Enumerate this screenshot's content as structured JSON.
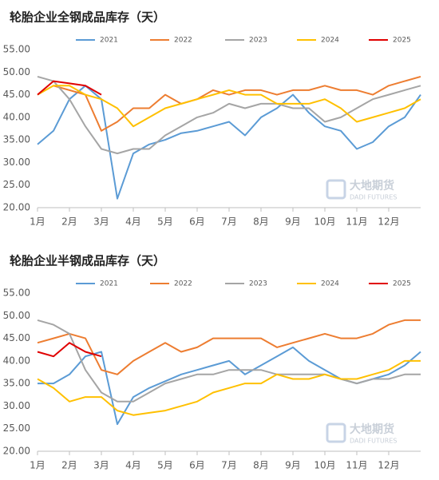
{
  "chart_data": [
    {
      "type": "line",
      "title": "轮胎企业全钢成品库存（天）",
      "x": [
        1,
        1.5,
        2,
        2.5,
        3,
        3.5,
        4,
        4.5,
        5,
        5.5,
        6,
        6.5,
        7,
        7.5,
        8,
        8.5,
        9,
        9.5,
        10,
        10.5,
        11,
        11.5,
        12,
        12.5,
        13
      ],
      "xlim": [
        1,
        13
      ],
      "xticks": [
        {
          "value": 1,
          "label": "1月"
        },
        {
          "value": 2,
          "label": "2月"
        },
        {
          "value": 3,
          "label": "3月"
        },
        {
          "value": 4,
          "label": "4月"
        },
        {
          "value": 5,
          "label": "5月"
        },
        {
          "value": 6,
          "label": "6月"
        },
        {
          "value": 7,
          "label": "7月"
        },
        {
          "value": 8,
          "label": "8月"
        },
        {
          "value": 9,
          "label": "9月"
        },
        {
          "value": 10,
          "label": "10月"
        },
        {
          "value": 11,
          "label": "11月"
        },
        {
          "value": 12,
          "label": "12月"
        }
      ],
      "ylim": [
        20,
        55
      ],
      "yticks": [
        {
          "value": 20,
          "label": "20.00"
        },
        {
          "value": 25,
          "label": "25.00"
        },
        {
          "value": 30,
          "label": "30.00"
        },
        {
          "value": 35,
          "label": "35.00"
        },
        {
          "value": 40,
          "label": "40.00"
        },
        {
          "value": 45,
          "label": "45.00"
        },
        {
          "value": 50,
          "label": "50.00"
        },
        {
          "value": 55,
          "label": "55.00"
        }
      ],
      "grid": false,
      "watermark": [
        "大地期货",
        "DADI FUTURES"
      ],
      "series": [
        {
          "name": "2021",
          "color": "#5b9bd5",
          "values": [
            34,
            37,
            44,
            47,
            44,
            22,
            32,
            34,
            35,
            36.5,
            37,
            38,
            39,
            36,
            40,
            42,
            45,
            41,
            38,
            37,
            33,
            34.5,
            38,
            40,
            45
          ]
        },
        {
          "name": "2022",
          "color": "#ed7d31",
          "values": [
            null,
            47,
            46,
            45,
            37,
            39,
            42,
            42,
            45,
            43,
            44,
            46,
            45,
            46,
            46,
            45,
            46,
            46,
            47,
            46,
            46,
            45,
            47,
            48,
            49
          ]
        },
        {
          "name": "2023",
          "color": "#a5a5a5",
          "values": [
            49,
            48,
            44,
            38,
            33,
            32,
            33,
            33,
            36,
            38,
            40,
            41,
            43,
            42,
            43,
            43,
            42,
            42,
            39,
            40,
            42,
            44,
            45,
            46,
            47
          ]
        },
        {
          "name": "2024",
          "color": "#ffc000",
          "values": [
            45,
            47,
            47,
            45,
            44,
            42,
            38,
            40,
            42,
            43,
            44,
            45,
            46,
            45,
            45,
            43,
            43,
            43,
            44,
            42,
            39,
            40,
            41,
            42,
            44
          ]
        },
        {
          "name": "2025",
          "color": "#e00000",
          "values": [
            45,
            48,
            47.5,
            47,
            45,
            null,
            null,
            null,
            null,
            null,
            null,
            null,
            null,
            null,
            null,
            null,
            null,
            null,
            null,
            null,
            null,
            null,
            null,
            null,
            null
          ]
        }
      ]
    },
    {
      "type": "line",
      "title": "轮胎企业半钢成品库存（天）",
      "x": [
        1,
        1.5,
        2,
        2.5,
        3,
        3.5,
        4,
        4.5,
        5,
        5.5,
        6,
        6.5,
        7,
        7.5,
        8,
        8.5,
        9,
        9.5,
        10,
        10.5,
        11,
        11.5,
        12,
        12.5,
        13
      ],
      "xlim": [
        1,
        13
      ],
      "xticks": [
        {
          "value": 1,
          "label": "1月"
        },
        {
          "value": 2,
          "label": "2月"
        },
        {
          "value": 3,
          "label": "3月"
        },
        {
          "value": 4,
          "label": "4月"
        },
        {
          "value": 5,
          "label": "5月"
        },
        {
          "value": 6,
          "label": "6月"
        },
        {
          "value": 7,
          "label": "7月"
        },
        {
          "value": 8,
          "label": "8月"
        },
        {
          "value": 9,
          "label": "9月"
        },
        {
          "value": 10,
          "label": "10月"
        },
        {
          "value": 11,
          "label": "11月"
        },
        {
          "value": 12,
          "label": "12月"
        }
      ],
      "ylim": [
        20,
        55
      ],
      "yticks": [
        {
          "value": 20,
          "label": "20.00"
        },
        {
          "value": 25,
          "label": "25.00"
        },
        {
          "value": 30,
          "label": "30.00"
        },
        {
          "value": 35,
          "label": "35.00"
        },
        {
          "value": 40,
          "label": "40.00"
        },
        {
          "value": 45,
          "label": "45.00"
        },
        {
          "value": 50,
          "label": "50.00"
        },
        {
          "value": 55,
          "label": "55.00"
        }
      ],
      "grid": false,
      "watermark": [
        "大地期货",
        "DADI FUTURES"
      ],
      "series": [
        {
          "name": "2021",
          "color": "#5b9bd5",
          "values": [
            35,
            35,
            37,
            41,
            42,
            26,
            32,
            34,
            35.5,
            37,
            38,
            39,
            40,
            37,
            39,
            41,
            43,
            40,
            38,
            36,
            35,
            36,
            37,
            39,
            42
          ]
        },
        {
          "name": "2022",
          "color": "#ed7d31",
          "values": [
            44,
            45,
            46,
            45,
            38,
            37,
            40,
            42,
            44,
            42,
            43,
            45,
            45,
            45,
            45,
            43,
            44,
            45,
            46,
            45,
            45,
            46,
            48,
            49,
            49
          ]
        },
        {
          "name": "2023",
          "color": "#a5a5a5",
          "values": [
            49,
            48,
            46,
            38,
            33,
            31,
            31,
            33,
            35,
            36,
            37,
            37,
            38,
            38,
            38,
            37,
            37,
            37,
            37,
            36,
            35,
            36,
            36,
            37,
            37
          ]
        },
        {
          "name": "2024",
          "color": "#ffc000",
          "values": [
            36,
            34,
            31,
            32,
            32,
            29,
            28,
            28.5,
            29,
            30,
            31,
            33,
            34,
            35,
            35,
            37,
            36,
            36,
            37,
            36,
            36,
            37,
            38,
            40,
            40
          ]
        },
        {
          "name": "2025",
          "color": "#e00000",
          "values": [
            42,
            41,
            44,
            42,
            41,
            null,
            null,
            null,
            null,
            null,
            null,
            null,
            null,
            null,
            null,
            null,
            null,
            null,
            null,
            null,
            null,
            null,
            null,
            null,
            null
          ]
        }
      ]
    }
  ]
}
